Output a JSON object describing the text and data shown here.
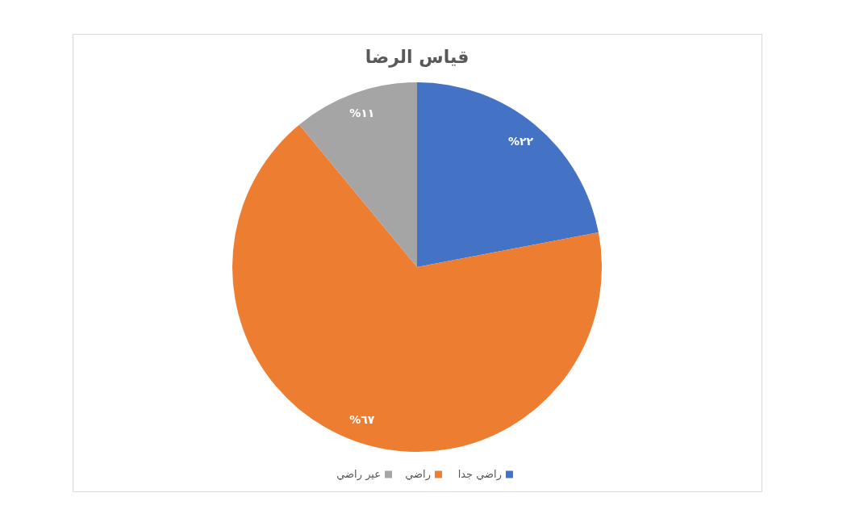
{
  "chart_data": {
    "type": "pie",
    "title": "قياس الرضا",
    "categories": [
      "راضي جدا",
      "راضي",
      "عير راضي"
    ],
    "values": [
      22,
      67,
      11
    ],
    "colors": [
      "#4472c4",
      "#ed7d31",
      "#a5a5a5"
    ],
    "value_labels": [
      "%٢٢",
      "%٦٧",
      "%١١"
    ],
    "legend": "bottom"
  }
}
